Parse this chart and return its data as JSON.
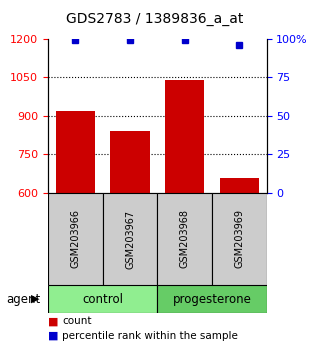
{
  "title": "GDS2783 / 1389836_a_at",
  "samples": [
    "GSM203966",
    "GSM203967",
    "GSM203968",
    "GSM203969"
  ],
  "bar_values": [
    920,
    840,
    1040,
    660
  ],
  "percentile_values": [
    99,
    99,
    99,
    96
  ],
  "ylim_left": [
    600,
    1200
  ],
  "ylim_right": [
    0,
    100
  ],
  "yticks_left": [
    600,
    750,
    900,
    1050,
    1200
  ],
  "yticks_right": [
    0,
    25,
    50,
    75,
    100
  ],
  "yticklabels_right": [
    "0",
    "25",
    "50",
    "75",
    "100%"
  ],
  "bar_color": "#cc0000",
  "dot_color": "#0000cc",
  "groups": [
    {
      "label": "control",
      "samples": [
        0,
        1
      ],
      "color": "#90ee90"
    },
    {
      "label": "progesterone",
      "samples": [
        2,
        3
      ],
      "color": "#66cc66"
    }
  ],
  "agent_label": "agent",
  "legend_items": [
    {
      "color": "#cc0000",
      "label": "count"
    },
    {
      "color": "#0000cc",
      "label": "percentile rank within the sample"
    }
  ],
  "title_fontsize": 10,
  "tick_fontsize": 8,
  "sample_fontsize": 7,
  "group_fontsize": 8.5,
  "legend_fontsize": 7.5,
  "agent_fontsize": 8.5
}
